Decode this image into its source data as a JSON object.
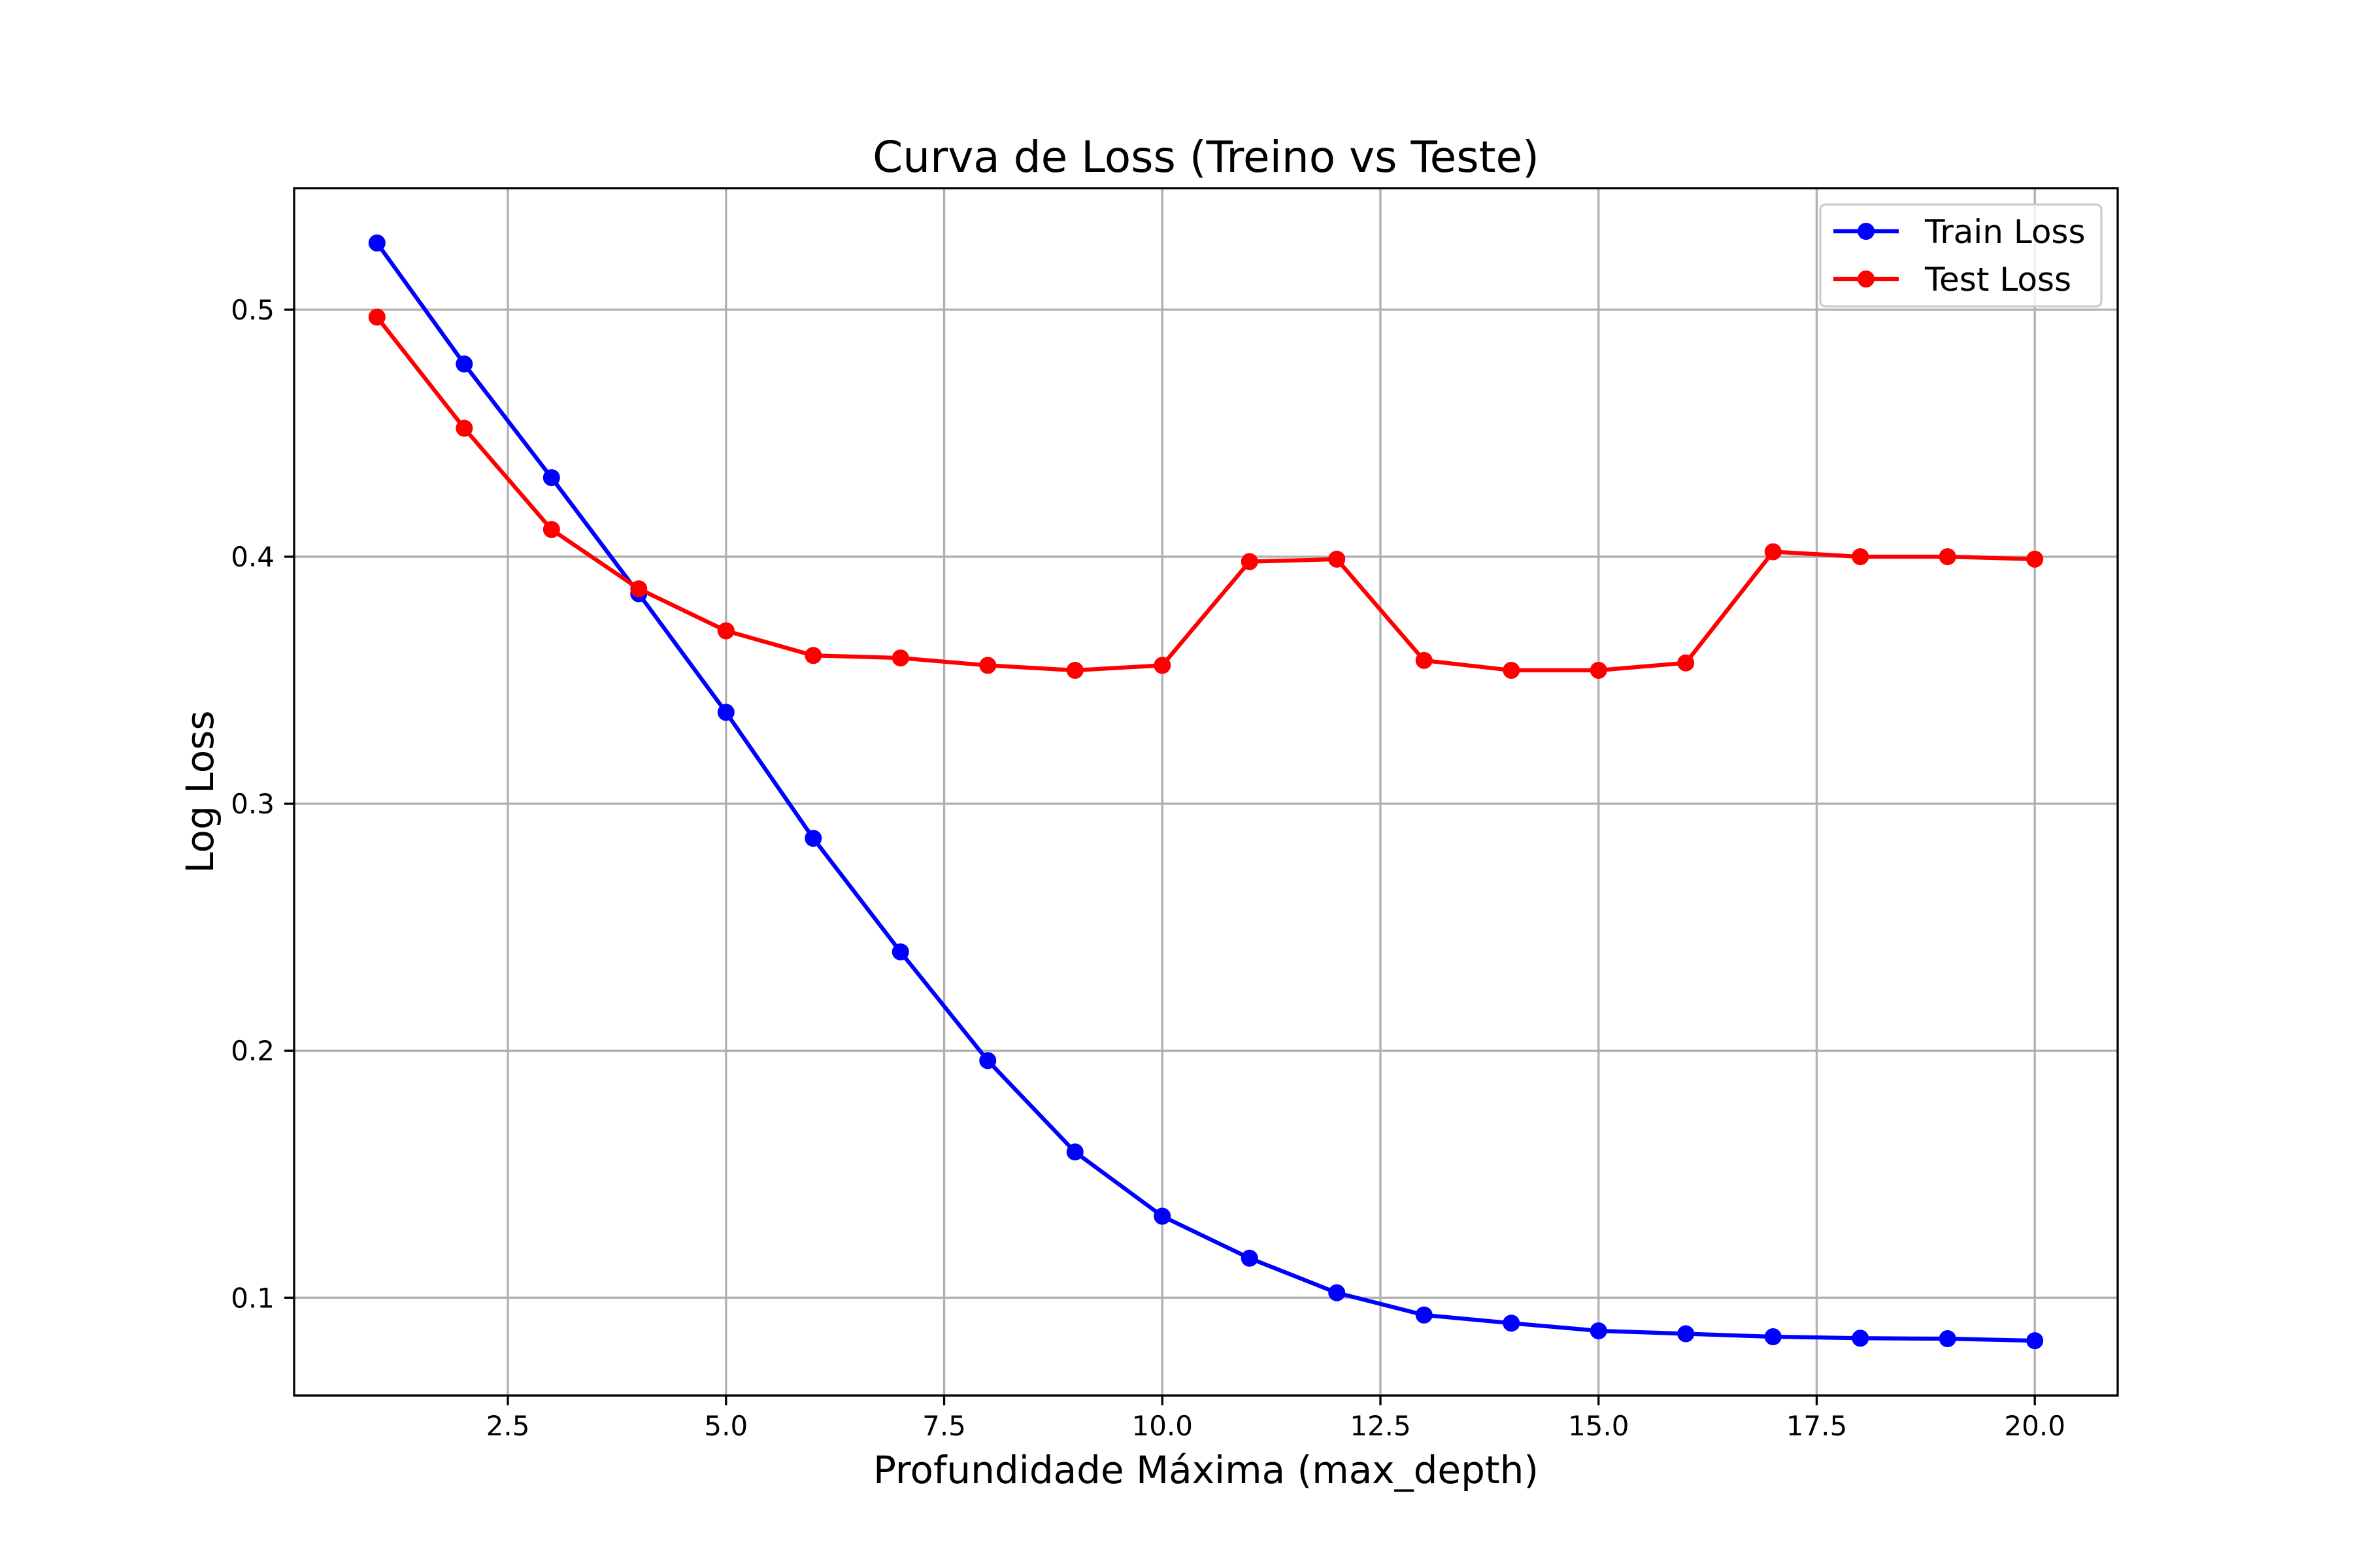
{
  "chart_data": {
    "type": "line",
    "title": "Curva de Loss (Treino vs Teste)",
    "xlabel": "Profundidade Máxima (max_depth)",
    "ylabel": "Log Loss",
    "x": [
      1,
      2,
      3,
      4,
      5,
      6,
      7,
      8,
      9,
      10,
      11,
      12,
      13,
      14,
      15,
      16,
      17,
      18,
      19,
      20
    ],
    "series": [
      {
        "name": "Train Loss",
        "color": "#0000ff",
        "marker": "circle",
        "values": [
          0.527,
          0.478,
          0.432,
          0.385,
          0.337,
          0.286,
          0.24,
          0.196,
          0.159,
          0.133,
          0.116,
          0.102,
          0.093,
          0.0897,
          0.0866,
          0.0854,
          0.0842,
          0.0836,
          0.0834,
          0.0826
        ]
      },
      {
        "name": "Test Loss",
        "color": "#ff0000",
        "marker": "circle",
        "values": [
          0.497,
          0.452,
          0.411,
          0.387,
          0.37,
          0.36,
          0.359,
          0.356,
          0.354,
          0.356,
          0.398,
          0.399,
          0.358,
          0.354,
          0.354,
          0.357,
          0.402,
          0.4,
          0.4,
          0.399
        ]
      }
    ],
    "xlim": [
      0.05,
      20.95
    ],
    "ylim": [
      0.0604,
      0.5492
    ],
    "xticks": [
      2.5,
      5.0,
      7.5,
      10.0,
      12.5,
      15.0,
      17.5,
      20.0
    ],
    "xtick_labels": [
      "2.5",
      "5.0",
      "7.5",
      "10.0",
      "12.5",
      "15.0",
      "17.5",
      "20.0"
    ],
    "yticks": [
      0.1,
      0.2,
      0.3,
      0.4,
      0.5
    ],
    "ytick_labels": [
      "0.1",
      "0.2",
      "0.3",
      "0.4",
      "0.5"
    ],
    "grid": true,
    "grid_color": "#b0b0b0",
    "legend_position": "upper right"
  }
}
